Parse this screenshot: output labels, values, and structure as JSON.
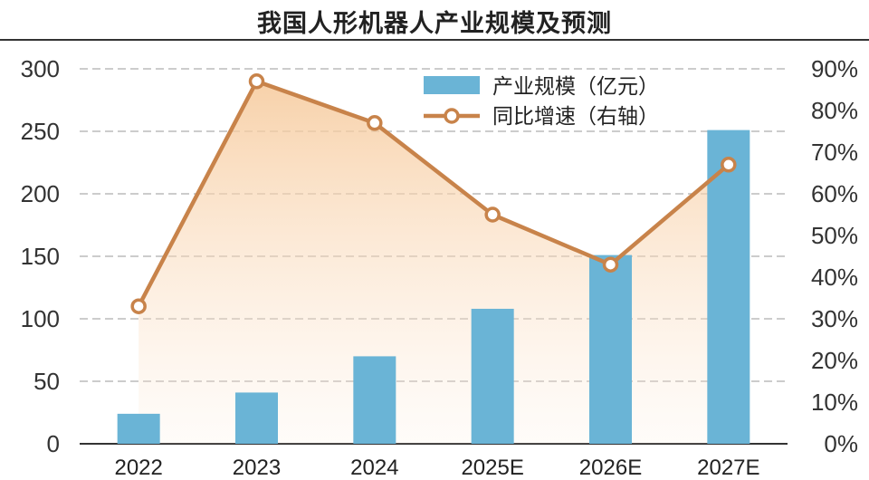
{
  "title": "我国人形机器人产业规模及预测",
  "chart_data": {
    "type": "bar+line",
    "title": "我国人形机器人产业规模及预测",
    "categories": [
      "2022",
      "2023",
      "2024",
      "2025E",
      "2026E",
      "2027E"
    ],
    "series": [
      {
        "name": "产业规模（亿元）",
        "type": "bar",
        "axis": "left",
        "values": [
          24,
          41,
          70,
          108,
          151,
          251
        ],
        "color": "#6ab4d6"
      },
      {
        "name": "同比增速（右轴）",
        "type": "line",
        "axis": "right",
        "values": [
          33,
          87,
          77,
          55,
          43,
          67
        ],
        "color": "#c8834a"
      }
    ],
    "y_left": {
      "min": 0,
      "max": 300,
      "ticks": [
        "0",
        "50",
        "100",
        "150",
        "200",
        "250",
        "300"
      ]
    },
    "y_right": {
      "min": 0,
      "max": 90,
      "ticks": [
        "0%",
        "10%",
        "20%",
        "30%",
        "40%",
        "50%",
        "60%",
        "70%",
        "80%",
        "90%"
      ]
    },
    "grid": "horizontal dashed",
    "legend": "top-right"
  }
}
